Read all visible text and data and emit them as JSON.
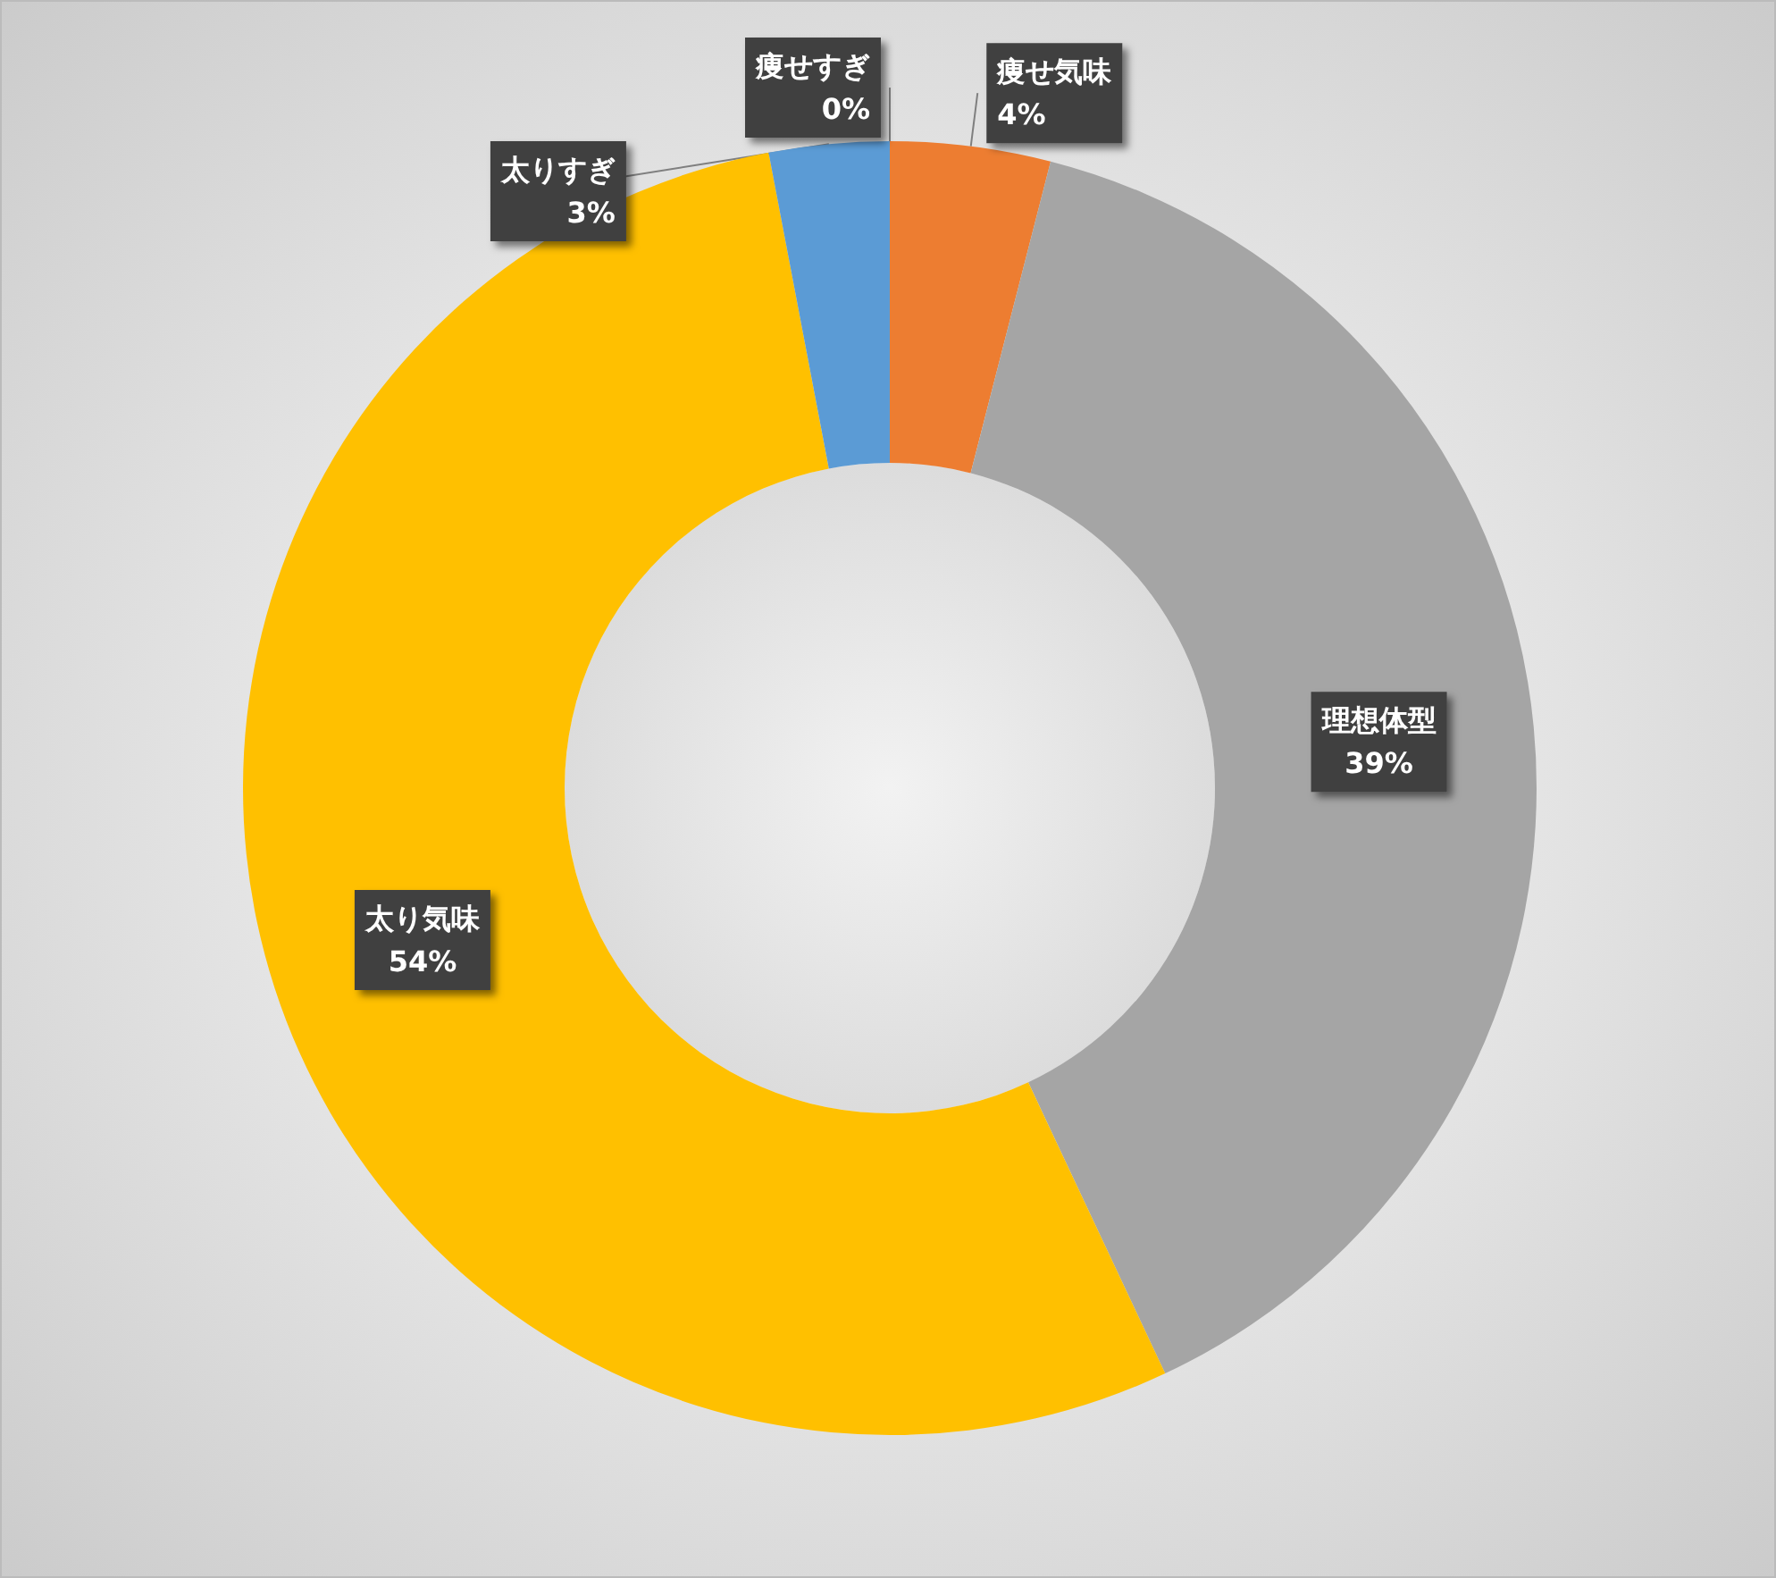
{
  "chart_data": {
    "type": "donut",
    "categories": [
      "痩せすぎ",
      "痩せ気味",
      "理想体型",
      "太り気味",
      "太りすぎ"
    ],
    "values": [
      0,
      4,
      39,
      54,
      3
    ],
    "colors": [
      "#4472c4",
      "#ed7d31",
      "#a5a5a5",
      "#ffc000",
      "#5b9bd5"
    ],
    "value_labels": [
      "0%",
      "4%",
      "39%",
      "54%",
      "3%"
    ]
  }
}
